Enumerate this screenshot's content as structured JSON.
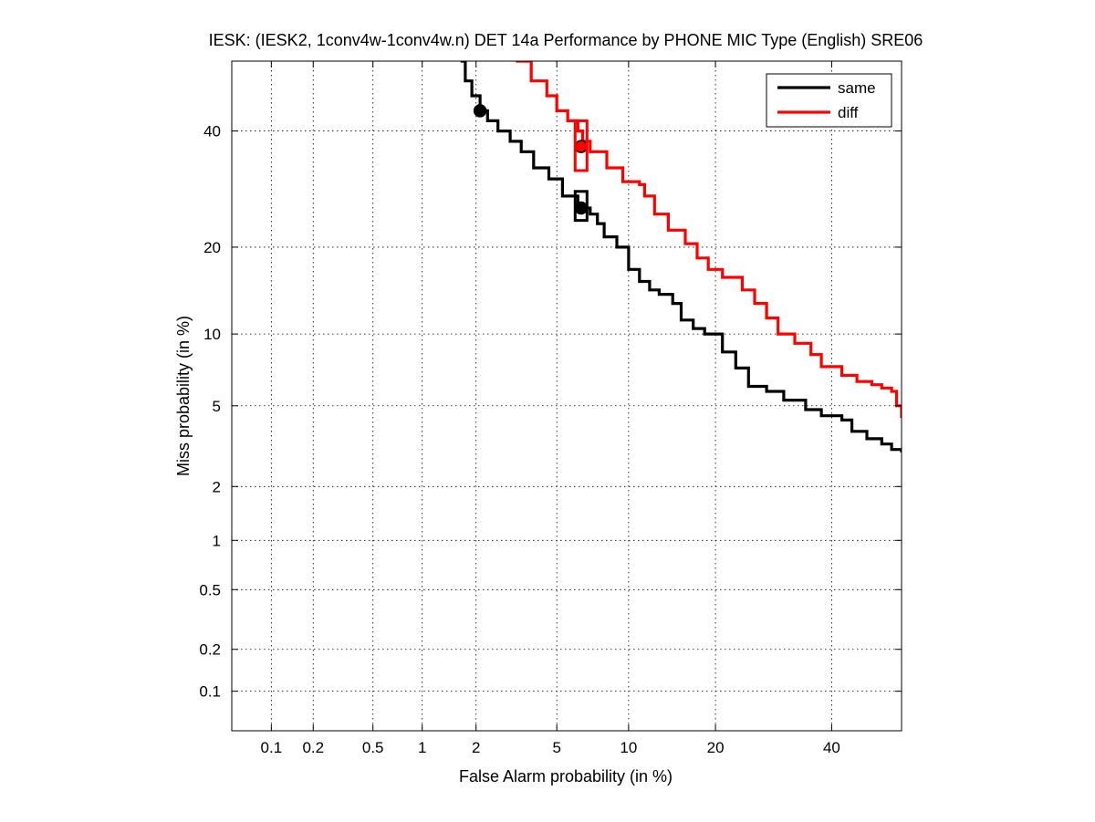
{
  "chart_data": {
    "type": "line",
    "title": "IESK: (IESK2, 1conv4w-1conv4w.n) DET 14a Performance by PHONE MIC Type (English) SRE06",
    "xlabel": "False Alarm probability (in %)",
    "ylabel": "Miss probability (in %)",
    "x_scale": "normal-deviate (probit)",
    "y_scale": "normal-deviate (probit)",
    "xlim": [
      0.05,
      54
    ],
    "ylim": [
      0.05,
      54
    ],
    "x_ticks": [
      0.1,
      0.2,
      0.5,
      1,
      2,
      5,
      10,
      20,
      40
    ],
    "x_tick_labels": [
      "0.1",
      "0.2",
      "0.5",
      "1",
      "2",
      "5",
      "10",
      "20",
      "40"
    ],
    "y_ticks": [
      0.1,
      0.2,
      0.5,
      1,
      2,
      5,
      10,
      20,
      40
    ],
    "y_tick_labels": [
      "0.1",
      "0.2",
      "0.5",
      "1",
      "2",
      "5",
      "10",
      "20",
      "40"
    ],
    "grid": true,
    "legend_position": "top-right",
    "series": [
      {
        "name": "same",
        "color": "#000000",
        "points": [
          [
            1.65,
            54
          ],
          [
            1.75,
            50
          ],
          [
            1.9,
            47
          ],
          [
            2.1,
            44
          ],
          [
            2.3,
            42
          ],
          [
            2.6,
            40
          ],
          [
            3.0,
            38
          ],
          [
            3.4,
            36
          ],
          [
            3.9,
            33
          ],
          [
            4.6,
            31
          ],
          [
            5.3,
            28
          ],
          [
            6.2,
            26
          ],
          [
            7.0,
            25
          ],
          [
            7.5,
            23.5
          ],
          [
            8.0,
            21.5
          ],
          [
            9.0,
            20
          ],
          [
            10,
            17
          ],
          [
            11,
            15.5
          ],
          [
            12,
            14.5
          ],
          [
            13,
            14
          ],
          [
            14.5,
            13
          ],
          [
            15.5,
            11.3
          ],
          [
            17,
            10.5
          ],
          [
            18.5,
            10
          ],
          [
            21,
            8.5
          ],
          [
            23,
            7.3
          ],
          [
            25,
            6.1
          ],
          [
            28,
            5.8
          ],
          [
            31,
            5.3
          ],
          [
            35,
            4.8
          ],
          [
            38,
            4.5
          ],
          [
            42,
            4.3
          ],
          [
            44,
            3.8
          ],
          [
            47,
            3.5
          ],
          [
            50,
            3.3
          ],
          [
            52,
            3.1
          ],
          [
            54,
            3.0
          ]
        ],
        "markers": [
          {
            "type": "dot",
            "x": 2.1,
            "y": 44
          },
          {
            "type": "dot",
            "x": 6.4,
            "y": 26
          },
          {
            "type": "box",
            "x": 6.4,
            "y_low": 24,
            "y_high": 28.8
          }
        ]
      },
      {
        "name": "diff",
        "color": "#ff0000",
        "points": [
          [
            3.2,
            54
          ],
          [
            3.8,
            50
          ],
          [
            4.5,
            47
          ],
          [
            5.0,
            44
          ],
          [
            5.6,
            42
          ],
          [
            6.2,
            40
          ],
          [
            6.5,
            38
          ],
          [
            7.0,
            36
          ],
          [
            8.2,
            33
          ],
          [
            9.5,
            30.5
          ],
          [
            11,
            30
          ],
          [
            11.5,
            28
          ],
          [
            12.5,
            25
          ],
          [
            14,
            22.5
          ],
          [
            16,
            20.5
          ],
          [
            17.5,
            18.5
          ],
          [
            19,
            17
          ],
          [
            21,
            16
          ],
          [
            24,
            14.5
          ],
          [
            26,
            13
          ],
          [
            28,
            11.5
          ],
          [
            30,
            10
          ],
          [
            33,
            9.2
          ],
          [
            36,
            8.3
          ],
          [
            38,
            7.4
          ],
          [
            42,
            6.8
          ],
          [
            45,
            6.4
          ],
          [
            48,
            6.2
          ],
          [
            50,
            6.0
          ],
          [
            52,
            5.8
          ],
          [
            53,
            5.0
          ],
          [
            54,
            4.4
          ]
        ],
        "markers": [
          {
            "type": "dot",
            "x": 6.4,
            "y": 37
          },
          {
            "type": "box",
            "x": 6.4,
            "y_low": 32.5,
            "y_high": 42
          }
        ]
      }
    ]
  }
}
